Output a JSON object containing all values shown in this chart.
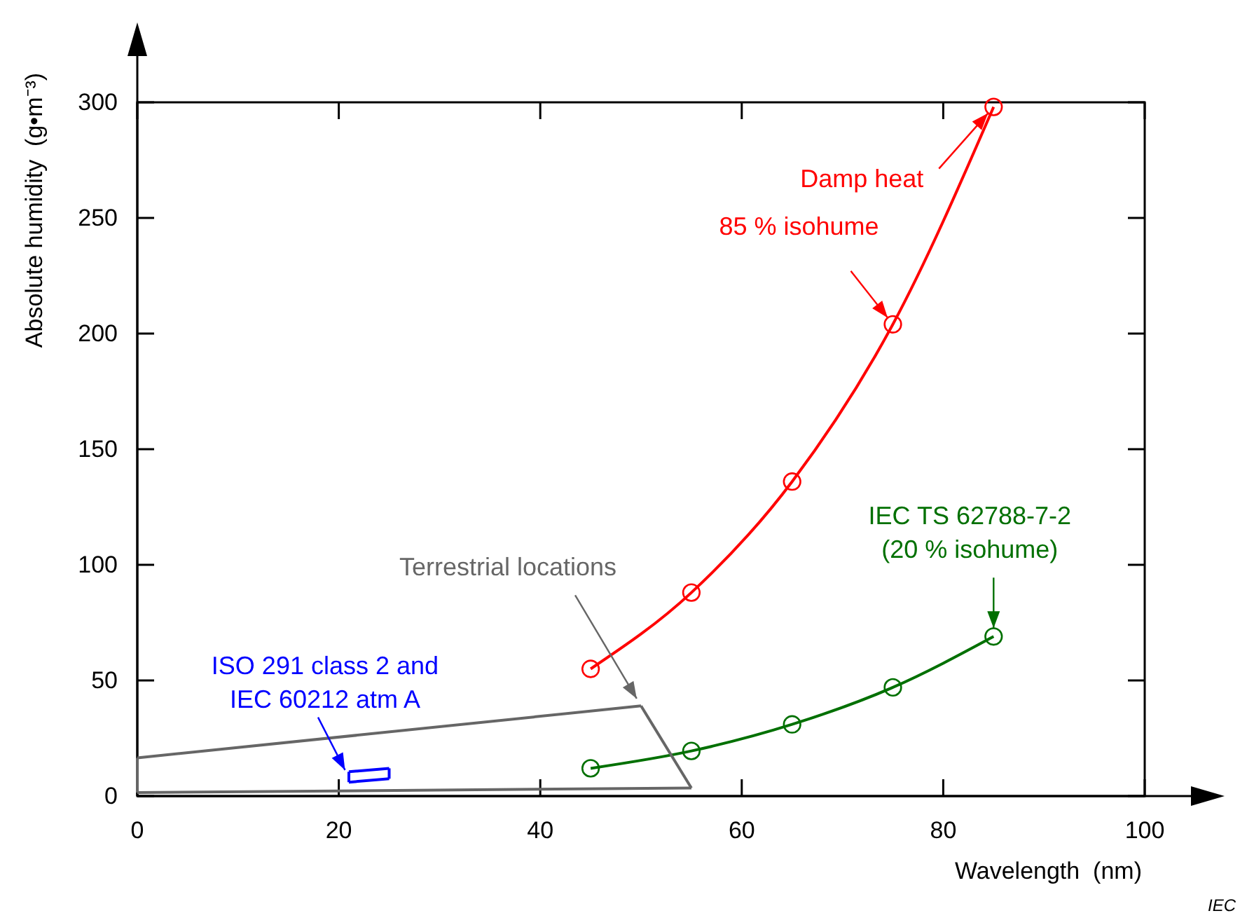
{
  "chart_data": {
    "type": "line",
    "xlabel": "Wavelength  (nm)",
    "ylabel": "Absolute humidity  (g•m⁻³)",
    "xlim": [
      0,
      100
    ],
    "ylim": [
      0,
      300
    ],
    "xticks": [
      0,
      20,
      40,
      60,
      80,
      100
    ],
    "yticks": [
      0,
      50,
      100,
      150,
      200,
      250,
      300
    ],
    "grid": false,
    "marker": "circle",
    "line_style": "solid",
    "series": [
      {
        "color": "#ff0000",
        "x": [
          45,
          55,
          65,
          75,
          85
        ],
        "values": [
          55,
          88,
          136,
          204,
          298
        ]
      },
      {
        "color": "#007000",
        "x": [
          45,
          55,
          65,
          75,
          85
        ],
        "values": [
          12,
          19.5,
          31,
          47,
          69
        ]
      },
      {
        "color": "#666666",
        "marker": "none",
        "x": [
          0,
          50
        ],
        "values": [
          16.5,
          39
        ]
      },
      {
        "color": "#666666",
        "marker": "none",
        "x": [
          50,
          55
        ],
        "values": [
          39,
          3.5
        ]
      },
      {
        "color": "#666666",
        "marker": "none",
        "x": [
          0,
          55
        ],
        "values": [
          1.5,
          3.5
        ]
      },
      {
        "color": "#666666",
        "marker": "none",
        "x": [
          0,
          0
        ],
        "values": [
          1.5,
          16.5
        ]
      },
      {
        "color": "#0000ff",
        "marker": "none",
        "x": [
          21,
          25
        ],
        "values": [
          6,
          7.5
        ]
      },
      {
        "color": "#0000ff",
        "marker": "none",
        "x": [
          21,
          25
        ],
        "values": [
          10.5,
          12
        ]
      },
      {
        "color": "#0000ff",
        "marker": "none",
        "x": [
          21,
          21
        ],
        "values": [
          6,
          10.5
        ]
      },
      {
        "color": "#0000ff",
        "marker": "none",
        "x": [
          25,
          25
        ],
        "values": [
          7.5,
          12
        ]
      }
    ],
    "annotations": [
      {
        "text": "Damp heat",
        "x": 85,
        "y": 298
      },
      {
        "text": "85 % isohume",
        "x": 75,
        "y": 204
      },
      {
        "text": "IEC TS 62788-7-2\n(20 % isohume)",
        "x": 85,
        "y": 69
      },
      {
        "text": "Terrestrial locations",
        "x": 50,
        "y": 39
      },
      {
        "text": "ISO 291 class 2 and\nIEC 60212 atm A",
        "x": 21,
        "y": 8
      },
      "IEC"
    ]
  }
}
